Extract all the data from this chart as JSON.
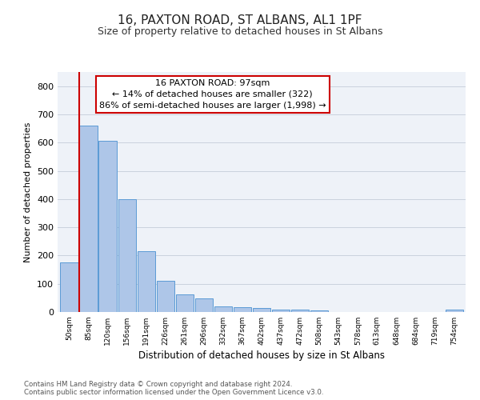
{
  "title": "16, PAXTON ROAD, ST ALBANS, AL1 1PF",
  "subtitle": "Size of property relative to detached houses in St Albans",
  "xlabel": "Distribution of detached houses by size in St Albans",
  "ylabel": "Number of detached properties",
  "bar_labels": [
    "50sqm",
    "85sqm",
    "120sqm",
    "156sqm",
    "191sqm",
    "226sqm",
    "261sqm",
    "296sqm",
    "332sqm",
    "367sqm",
    "402sqm",
    "437sqm",
    "472sqm",
    "508sqm",
    "543sqm",
    "578sqm",
    "613sqm",
    "648sqm",
    "684sqm",
    "719sqm",
    "754sqm"
  ],
  "bar_values": [
    175,
    660,
    605,
    400,
    215,
    110,
    63,
    47,
    20,
    17,
    15,
    8,
    8,
    7,
    0,
    0,
    0,
    0,
    0,
    0,
    8
  ],
  "bar_color": "#aec6e8",
  "bar_edge_color": "#5b9bd5",
  "red_line_index": 1,
  "ylim": [
    0,
    850
  ],
  "yticks": [
    0,
    100,
    200,
    300,
    400,
    500,
    600,
    700,
    800
  ],
  "annotation_title": "16 PAXTON ROAD: 97sqm",
  "annotation_line1": "← 14% of detached houses are smaller (322)",
  "annotation_line2": "86% of semi-detached houses are larger (1,998) →",
  "annotation_box_color": "#ffffff",
  "annotation_box_edgecolor": "#cc0000",
  "footer_line1": "Contains HM Land Registry data © Crown copyright and database right 2024.",
  "footer_line2": "Contains public sector information licensed under the Open Government Licence v3.0.",
  "background_color": "#eef2f8",
  "grid_color": "#c5ccd8",
  "title_fontsize": 11,
  "subtitle_fontsize": 9
}
